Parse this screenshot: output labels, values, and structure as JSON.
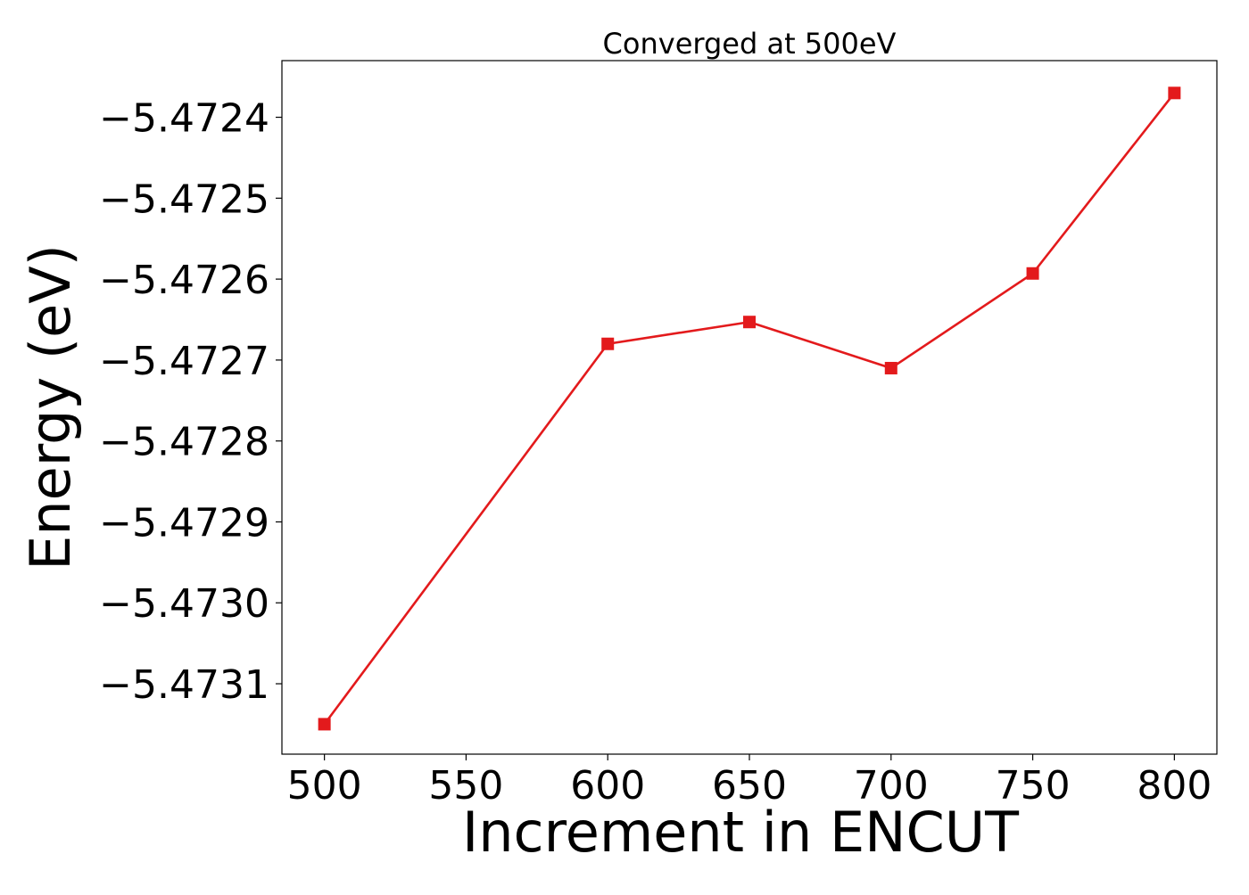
{
  "chart_data": {
    "type": "line",
    "title": "Converged at 500eV",
    "xlabel": "Increment in ENCUT",
    "ylabel": "Energy (eV)",
    "x": [
      500,
      600,
      650,
      700,
      750,
      800
    ],
    "series": [
      {
        "values": [
          -5.47315,
          -5.47268,
          -5.472653,
          -5.47271,
          -5.472593,
          -5.47237
        ],
        "color": "#e31a1c",
        "marker": "square"
      }
    ],
    "xlim": [
      485,
      815
    ],
    "ylim": [
      -5.473187,
      -5.47233
    ],
    "xticks": [
      500,
      550,
      600,
      650,
      700,
      750,
      800
    ],
    "xtick_labels": [
      "500",
      "550",
      "600",
      "650",
      "700",
      "750",
      "800"
    ],
    "yticks": [
      -5.4731,
      -5.473,
      -5.4729,
      -5.4728,
      -5.4727,
      -5.4726,
      -5.4725,
      -5.4724
    ],
    "ytick_labels": [
      "−5.4731",
      "−5.4730",
      "−5.4729",
      "−5.4728",
      "−5.4727",
      "−5.4726",
      "−5.4725",
      "−5.4724"
    ],
    "grid": false
  }
}
